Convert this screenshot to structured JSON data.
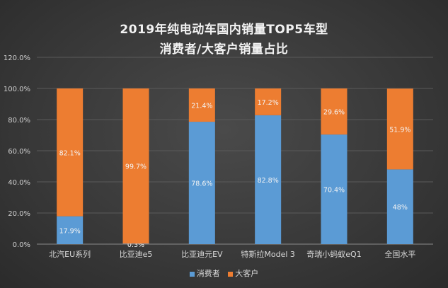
{
  "chart_data": {
    "type": "bar",
    "stacked": true,
    "title": "2019年纯电动车国内销量TOP5车型",
    "subtitle": "消费者/大客户销量占比",
    "categories": [
      "北汽EU系列",
      "比亚迪e5",
      "比亚迪元EV",
      "特斯拉Model 3",
      "奇瑞小蚂蚁eQ1",
      "全国水平"
    ],
    "series": [
      {
        "name": "消费者",
        "color": "#5b9bd5",
        "values": [
          17.9,
          0.3,
          78.6,
          82.8,
          70.4,
          48
        ],
        "labels": [
          "17.9%",
          "0.3%",
          "78.6%",
          "82.8%",
          "70.4%",
          "48%"
        ]
      },
      {
        "name": "大客户",
        "color": "#ed7d31",
        "values": [
          82.1,
          99.7,
          21.4,
          17.2,
          29.6,
          51.9
        ],
        "labels": [
          "82.1%",
          "99.7%",
          "21.4%",
          "17.2%",
          "29.6%",
          "51.9%"
        ]
      }
    ],
    "yticks": [
      "0.0%",
      "20.0%",
      "40.0%",
      "60.0%",
      "80.0%",
      "100.0%",
      "120.0%"
    ],
    "ylim": [
      0,
      120
    ],
    "grid": true,
    "legend": "bottom"
  }
}
